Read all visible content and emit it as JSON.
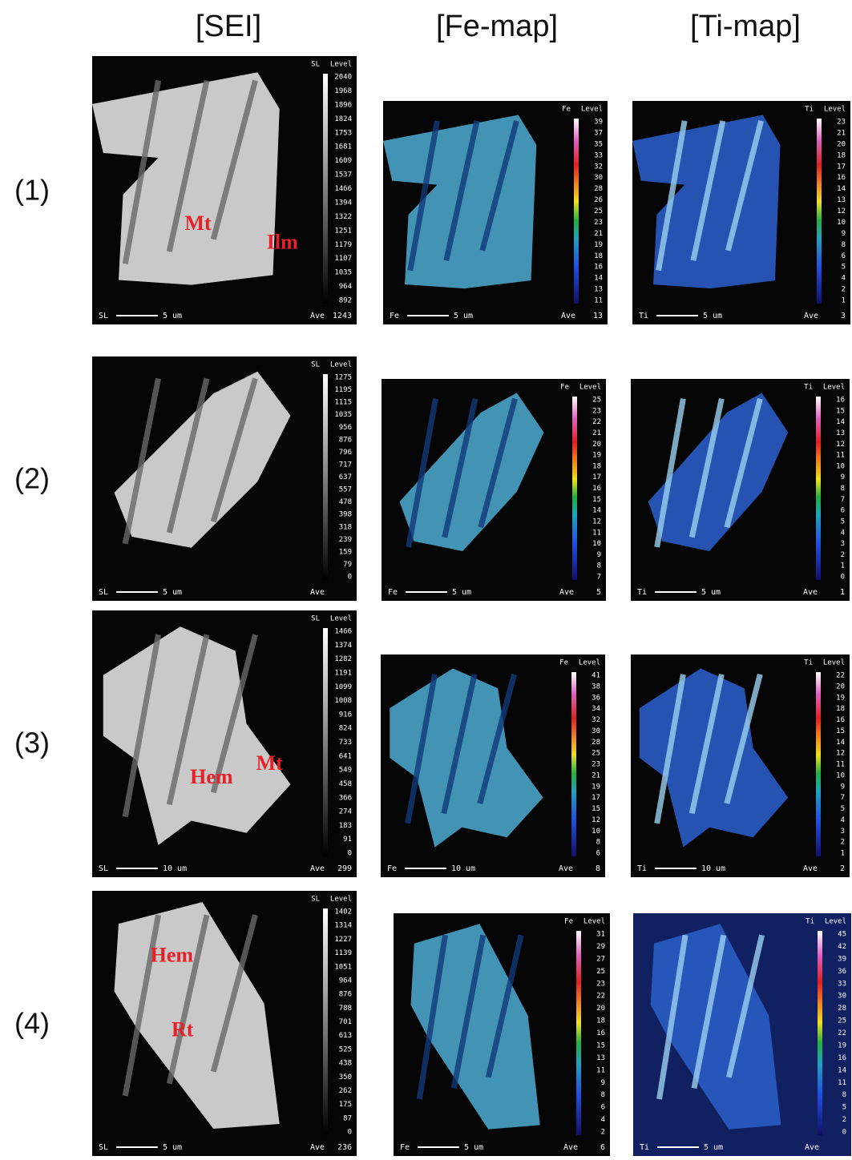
{
  "header": {
    "columns": [
      "[SEI]",
      "[Fe-map]",
      "[Ti-map]"
    ]
  },
  "row_labels": [
    "(1)",
    "(2)",
    "(3)",
    "(4)"
  ],
  "panels": [
    [
      {
        "caption": "SL",
        "level_title": "Level",
        "levels": [
          2040,
          1968,
          1896,
          1824,
          1753,
          1681,
          1609,
          1537,
          1466,
          1394,
          1322,
          1251,
          1179,
          1107,
          1035,
          964,
          892
        ],
        "ave_label": "Ave",
        "ave": 1243,
        "scale": "5 um",
        "annotations": [
          "Mt",
          "Ilm"
        ]
      },
      {
        "caption": "Fe",
        "level_title": "Level",
        "levels": [
          39,
          37,
          35,
          33,
          32,
          30,
          28,
          26,
          25,
          23,
          21,
          19,
          18,
          16,
          14,
          13,
          11
        ],
        "ave_label": "Ave",
        "ave": 13,
        "scale": "5 um"
      },
      {
        "caption": "Ti",
        "level_title": "Level",
        "levels": [
          23,
          21,
          20,
          18,
          17,
          16,
          14,
          13,
          12,
          10,
          9,
          8,
          6,
          5,
          4,
          2,
          1
        ],
        "ave_label": "Ave",
        "ave": 3,
        "scale": "5 um"
      }
    ],
    [
      {
        "caption": "SL",
        "level_title": "Level",
        "levels": [
          1275,
          1195,
          1115,
          1035,
          956,
          876,
          796,
          717,
          637,
          557,
          478,
          398,
          318,
          239,
          159,
          79,
          0
        ],
        "ave_label": "Ave",
        "scale": "5 um"
      },
      {
        "caption": "Fe",
        "level_title": "Level",
        "levels": [
          25,
          23,
          22,
          21,
          20,
          19,
          18,
          17,
          16,
          15,
          14,
          12,
          11,
          10,
          9,
          8,
          7
        ],
        "ave_label": "Ave",
        "ave": 5,
        "scale": "5 um"
      },
      {
        "caption": "Ti",
        "level_title": "Level",
        "levels": [
          16,
          15,
          14,
          13,
          12,
          11,
          10,
          9,
          8,
          7,
          6,
          5,
          4,
          3,
          2,
          1,
          0
        ],
        "ave_label": "Ave",
        "ave": 1,
        "scale": "5 um"
      }
    ],
    [
      {
        "caption": "SL",
        "level_title": "Level",
        "levels": [
          1466,
          1374,
          1282,
          1191,
          1099,
          1008,
          916,
          824,
          733,
          641,
          549,
          458,
          366,
          274,
          183,
          91,
          0
        ],
        "ave_label": "Ave",
        "ave": 299,
        "scale": "10 um",
        "annotations": [
          "Hem",
          "Mt"
        ]
      },
      {
        "caption": "Fe",
        "level_title": "Level",
        "levels": [
          41,
          38,
          36,
          34,
          32,
          30,
          28,
          25,
          23,
          21,
          19,
          17,
          15,
          12,
          10,
          8,
          6
        ],
        "ave_label": "Ave",
        "ave": 8,
        "scale": "10 um"
      },
      {
        "caption": "Ti",
        "level_title": "Level",
        "levels": [
          22,
          20,
          19,
          18,
          16,
          15,
          14,
          12,
          11,
          10,
          9,
          7,
          5,
          4,
          3,
          2,
          1
        ],
        "ave_label": "Ave",
        "ave": 2,
        "scale": "10 um"
      }
    ],
    [
      {
        "caption": "SL",
        "level_title": "Level",
        "levels": [
          1402,
          1314,
          1227,
          1139,
          1051,
          964,
          876,
          788,
          701,
          613,
          525,
          438,
          350,
          262,
          175,
          87,
          0
        ],
        "ave_label": "Ave",
        "ave": 236,
        "scale": "5 um",
        "annotations": [
          "Hem",
          "Rt"
        ]
      },
      {
        "caption": "Fe",
        "level_title": "Level",
        "levels": [
          31,
          29,
          27,
          25,
          23,
          22,
          20,
          18,
          16,
          15,
          13,
          11,
          9,
          8,
          6,
          4,
          2
        ],
        "ave_label": "Ave",
        "ave": 6,
        "scale": "5 um"
      },
      {
        "caption": "Ti",
        "level_title": "Level",
        "levels": [
          45,
          42,
          39,
          36,
          33,
          30,
          28,
          25,
          22,
          19,
          16,
          14,
          11,
          8,
          5,
          2,
          0
        ],
        "ave_label": "Ave",
        "scale": "5 um"
      }
    ]
  ]
}
